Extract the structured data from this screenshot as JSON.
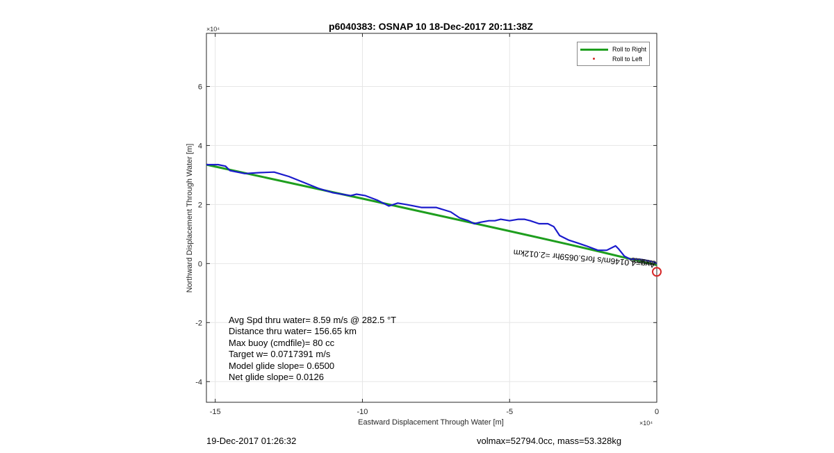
{
  "footer": {
    "left": "19-Dec-2017 01:26:32",
    "right": "volmax=52794.0cc, mass=53.328kg"
  },
  "stats": [
    "Avg Spd thru water=  8.59 m/s @ 282.5 °T",
    "Distance thru water= 156.65 km",
    "Max buoy (cmdfile)= 80 cc",
    "Target w= 0.0717391 m/s",
    "Model glide slope= 0.6500",
    "Net glide slope= 0.0126"
  ],
  "colors": {
    "roll_right": "#1e9e1e",
    "roll_left": "#d62728",
    "track": "#1a1acc",
    "marker": "#d62728",
    "grid": "#e6e6e6"
  },
  "chart_data": {
    "type": "line",
    "title": "p6040383: OSNAP 10 18-Dec-2017 20:11:38Z",
    "xlabel": "Eastward Displacement Through Water [m]",
    "ylabel": "Northward Displacement Through Water [m]",
    "x_exponent_label": "×10⁴",
    "y_exponent_label": "×10⁴",
    "xlim": [
      -15.3,
      0
    ],
    "ylim": [
      -4.7,
      7.8
    ],
    "xticks": [
      -15,
      -10,
      -5,
      0
    ],
    "yticks": [
      -4,
      -2,
      0,
      2,
      4,
      6
    ],
    "tick_scale": 10000,
    "grid": true,
    "legend_position": "top-right",
    "legend": [
      {
        "label": "Roll to Right",
        "style": "line"
      },
      {
        "label": "Roll to Left",
        "style": "dot"
      }
    ],
    "annotation": {
      "text": "Avg=4.0146m/s for5.0659hr =2.012km",
      "anchor_x": -0.05,
      "anchor_y": 0.05,
      "rotation_deg": 185
    },
    "series": [
      {
        "name": "Roll to Right",
        "style": "line",
        "x": [
          -15.3,
          -10.0,
          -5.0,
          -3.0,
          -2.0,
          -1.0,
          0.0
        ],
        "y": [
          3.35,
          2.2,
          1.1,
          0.65,
          0.42,
          0.18,
          -0.05
        ]
      },
      {
        "style": "track",
        "x": [
          -15.3,
          -14.9,
          -14.65,
          -14.5,
          -14.0,
          -13.5,
          -13.0,
          -12.5,
          -12.0,
          -11.5,
          -11.0,
          -10.4,
          -10.2,
          -9.9,
          -9.5,
          -9.1,
          -8.8,
          -8.5,
          -8.0,
          -7.5,
          -7.0,
          -6.7,
          -6.4,
          -6.2,
          -6.0,
          -5.7,
          -5.5,
          -5.3,
          -5.0,
          -4.7,
          -4.5,
          -4.3,
          -4.0,
          -3.7,
          -3.5,
          -3.3,
          -3.0,
          -2.7,
          -2.4,
          -2.0,
          -1.7,
          -1.4,
          -1.3,
          -1.1,
          -0.9,
          -0.6,
          -0.3,
          -0.1,
          0.0
        ],
        "y": [
          3.35,
          3.35,
          3.3,
          3.15,
          3.05,
          3.08,
          3.1,
          2.95,
          2.75,
          2.55,
          2.4,
          2.3,
          2.35,
          2.3,
          2.15,
          1.95,
          2.05,
          2.0,
          1.9,
          1.9,
          1.75,
          1.55,
          1.45,
          1.35,
          1.4,
          1.45,
          1.45,
          1.5,
          1.45,
          1.5,
          1.5,
          1.45,
          1.35,
          1.35,
          1.25,
          0.95,
          0.8,
          0.7,
          0.6,
          0.45,
          0.45,
          0.6,
          0.5,
          0.25,
          0.15,
          0.15,
          0.1,
          0.05,
          0.0
        ]
      }
    ],
    "end_marker": {
      "x": 0,
      "y": -0.28
    }
  }
}
